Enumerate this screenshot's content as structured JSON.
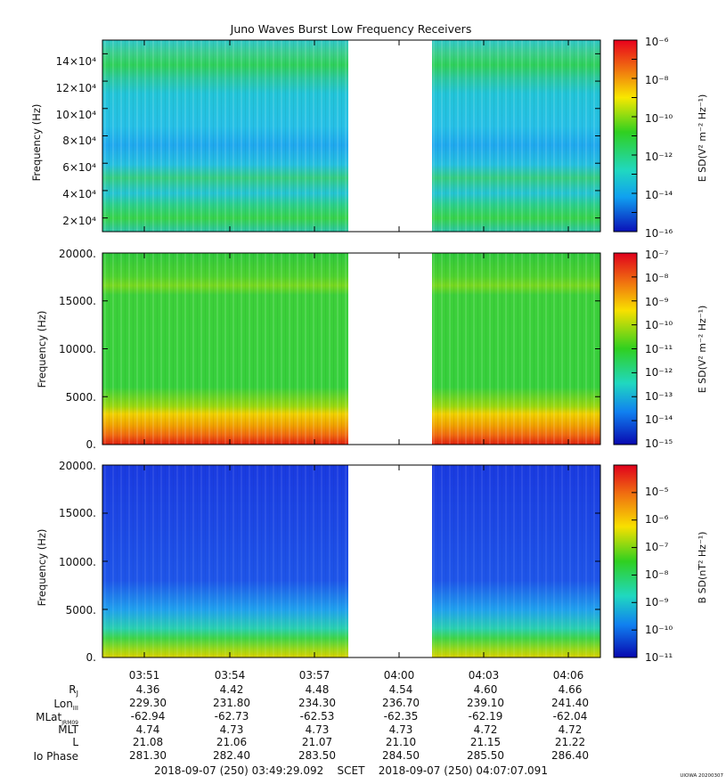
{
  "title": "Juno Waves Burst Low Frequency Receivers",
  "colors": {
    "panel_top_green": "#34c83c",
    "panel_top_cyan": "#23c8e8",
    "panel_mid_green": "#3ad23a",
    "panel_mid_orange": "#f08010",
    "panel_bot_blue": "#1a3de6",
    "gap": "#ffffff"
  },
  "chart_data": [
    {
      "type": "heatmap",
      "panel": "top",
      "ylabel": "Frequency (Hz)",
      "ylim": [
        10000,
        150000
      ],
      "ytick_labels": [
        "2×10⁴",
        "4×10⁴",
        "6×10⁴",
        "8×10⁴",
        "10×10⁴",
        "12×10⁴",
        "14×10⁴"
      ],
      "ytick_values": [
        20000,
        40000,
        60000,
        80000,
        100000,
        120000,
        140000
      ],
      "colorbar": {
        "label": "E SD(V² m⁻² Hz⁻¹)",
        "scale": "log",
        "range": [
          1e-16,
          1e-06
        ],
        "tick_labels": [
          "10⁻⁶",
          "10⁻⁸",
          "10⁻¹⁰",
          "10⁻¹²",
          "10⁻¹⁴",
          "10⁻¹⁶"
        ]
      }
    },
    {
      "type": "heatmap",
      "panel": "middle",
      "ylabel": "Frequency (Hz)",
      "ylim": [
        0,
        20000
      ],
      "ytick_labels": [
        "0.",
        "5000.",
        "10000.",
        "15000.",
        "20000."
      ],
      "ytick_values": [
        0,
        5000,
        10000,
        15000,
        20000
      ],
      "colorbar": {
        "label": "E SD(V² m⁻² Hz⁻¹)",
        "scale": "log",
        "range": [
          1e-15,
          1e-07
        ],
        "tick_labels": [
          "10⁻⁷",
          "10⁻⁸",
          "10⁻⁹",
          "10⁻¹⁰",
          "10⁻¹¹",
          "10⁻¹²",
          "10⁻¹³",
          "10⁻¹⁴",
          "10⁻¹⁵"
        ]
      }
    },
    {
      "type": "heatmap",
      "panel": "bottom",
      "ylabel": "Frequency (Hz)",
      "ylim": [
        0,
        20000
      ],
      "ytick_labels": [
        "0.",
        "5000.",
        "10000.",
        "15000.",
        "20000."
      ],
      "ytick_values": [
        0,
        5000,
        10000,
        15000,
        20000
      ],
      "colorbar": {
        "label": "B SD(nT² Hz⁻¹)",
        "scale": "log",
        "range": [
          1e-11,
          0.0001
        ],
        "tick_labels": [
          "10⁻⁵",
          "10⁻⁶",
          "10⁻⁷",
          "10⁻⁸",
          "10⁻⁹",
          "10⁻¹⁰",
          "10⁻¹¹"
        ]
      }
    }
  ],
  "time_axis": {
    "tick_labels": [
      "03:51",
      "03:54",
      "03:57",
      "04:00",
      "04:03",
      "04:06"
    ],
    "data_gap": [
      "03:58:40",
      "04:01:40"
    ]
  },
  "ephemeris": {
    "row_labels": [
      "R_J",
      "Lon_III",
      "MLat_JRM09",
      "MLT",
      "L",
      "Io Phase"
    ],
    "rows": [
      [
        "4.36",
        "4.42",
        "4.48",
        "4.54",
        "4.60",
        "4.66"
      ],
      [
        "229.30",
        "231.80",
        "234.30",
        "236.70",
        "239.10",
        "241.40"
      ],
      [
        "-62.94",
        "-62.73",
        "-62.53",
        "-62.35",
        "-62.19",
        "-62.04"
      ],
      [
        "4.74",
        "4.73",
        "4.73",
        "4.73",
        "4.72",
        "4.72"
      ],
      [
        "21.08",
        "21.06",
        "21.07",
        "21.10",
        "21.15",
        "21.22"
      ],
      [
        "281.30",
        "282.40",
        "283.50",
        "284.50",
        "285.50",
        "286.40"
      ]
    ]
  },
  "footer": {
    "range_text": "2018-09-07 (250) 03:49:29.092    SCET    2018-09-07 (250) 04:07:07.091",
    "credit": "UIOWA 20200307"
  }
}
